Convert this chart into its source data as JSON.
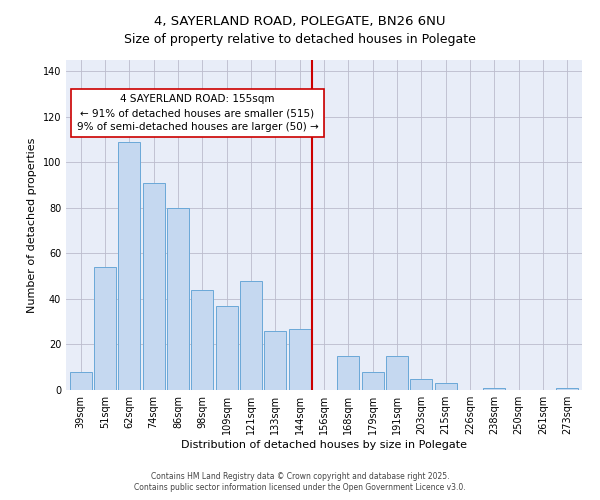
{
  "title": "4, SAYERLAND ROAD, POLEGATE, BN26 6NU",
  "subtitle": "Size of property relative to detached houses in Polegate",
  "xlabel": "Distribution of detached houses by size in Polegate",
  "ylabel": "Number of detached properties",
  "bar_labels": [
    "39sqm",
    "51sqm",
    "62sqm",
    "74sqm",
    "86sqm",
    "98sqm",
    "109sqm",
    "121sqm",
    "133sqm",
    "144sqm",
    "156sqm",
    "168sqm",
    "179sqm",
    "191sqm",
    "203sqm",
    "215sqm",
    "226sqm",
    "238sqm",
    "250sqm",
    "261sqm",
    "273sqm"
  ],
  "bar_values": [
    8,
    54,
    109,
    91,
    80,
    44,
    37,
    48,
    26,
    27,
    0,
    15,
    8,
    15,
    5,
    3,
    0,
    1,
    0,
    0,
    1
  ],
  "bar_color": "#C5D8F0",
  "bar_edgecolor": "#6AA8D8",
  "background_color": "#E8EDF8",
  "grid_color": "#BBBBCC",
  "vline_x_index": 10,
  "vline_color": "#CC0000",
  "annotation_line1": "4 SAYERLAND ROAD: 155sqm",
  "annotation_line2": "← 91% of detached houses are smaller (515)",
  "annotation_line3": "9% of semi-detached houses are larger (50) →",
  "annotation_box_edgecolor": "#CC0000",
  "ylim": [
    0,
    145
  ],
  "yticks": [
    0,
    20,
    40,
    60,
    80,
    100,
    120,
    140
  ],
  "title_fontsize": 9.5,
  "subtitle_fontsize": 9,
  "axis_label_fontsize": 8,
  "tick_fontsize": 7,
  "annotation_fontsize": 7.5,
  "footnote1": "Contains HM Land Registry data © Crown copyright and database right 2025.",
  "footnote2": "Contains public sector information licensed under the Open Government Licence v3.0.",
  "footnote_fontsize": 5.5
}
